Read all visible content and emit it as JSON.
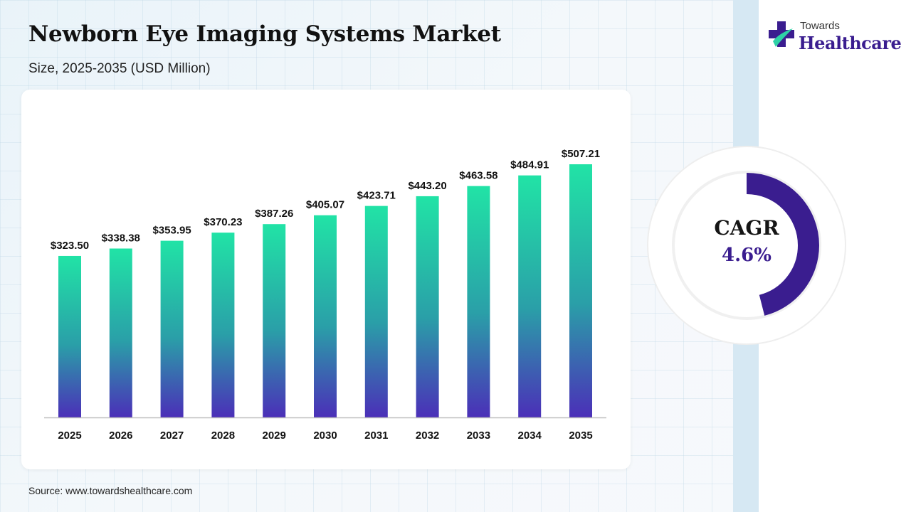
{
  "header": {
    "title": "Newborn Eye Imaging Systems Market",
    "subtitle": "Size, 2025-2035 (USD Million)"
  },
  "logo": {
    "line1": "Towards",
    "line2": "Healthcare",
    "brand_color": "#3a1d8f",
    "accent_color": "#2ed1a6"
  },
  "cagr": {
    "label": "CAGR",
    "value": "4.6%",
    "ring_fraction": 0.46,
    "ring_color": "#3a1d8f"
  },
  "source": "Source: www.towardshealthcare.com",
  "chart_data": {
    "type": "bar",
    "categories": [
      "2025",
      "2026",
      "2027",
      "2028",
      "2029",
      "2030",
      "2031",
      "2032",
      "2033",
      "2034",
      "2035"
    ],
    "values": [
      323.5,
      338.38,
      353.95,
      370.23,
      387.26,
      405.07,
      423.71,
      443.2,
      463.58,
      484.91,
      507.21
    ],
    "value_labels": [
      "$323.50",
      "$338.38",
      "$353.95",
      "$370.23",
      "$387.26",
      "$405.07",
      "$423.71",
      "$443.20",
      "$463.58",
      "$484.91",
      "$507.21"
    ],
    "title": "Newborn Eye Imaging Systems Market",
    "xlabel": "",
    "ylabel": "",
    "ylim": [
      0,
      507.21
    ],
    "grid": false,
    "bar_gradient": [
      "#21e3a6",
      "#2a9fa8",
      "#4b2fb8"
    ]
  }
}
